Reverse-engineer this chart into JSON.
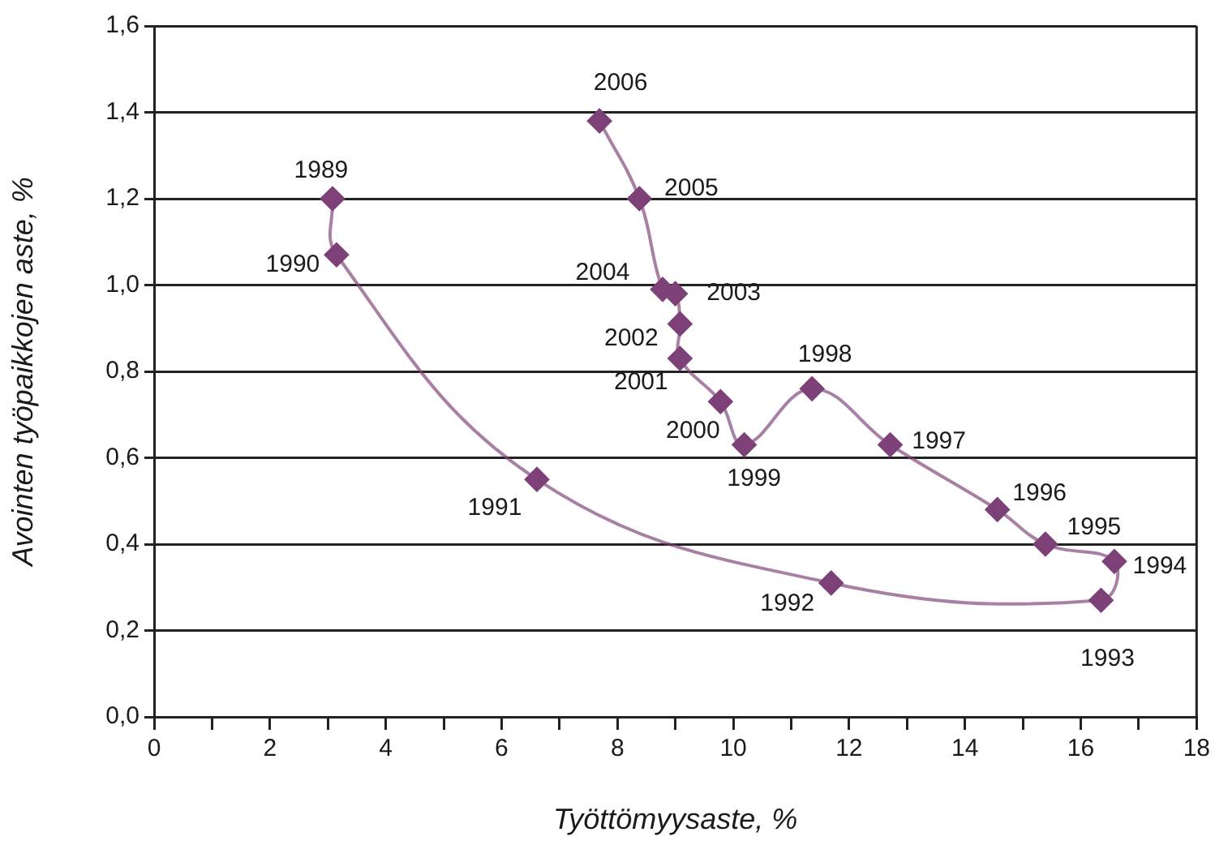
{
  "chart_data": {
    "type": "line",
    "xlabel": "Työttömyysaste, %",
    "ylabel": "Avointen työpaikkojen aste, %",
    "x": [
      3.08,
      3.15,
      6.61,
      11.69,
      16.35,
      16.58,
      15.39,
      14.56,
      12.71,
      11.36,
      10.19,
      9.78,
      9.08,
      9.08,
      9.0,
      8.78,
      8.38,
      7.69
    ],
    "series": [
      {
        "color": "#7d4177",
        "values": [
          1.2,
          1.07,
          0.55,
          0.31,
          0.27,
          0.36,
          0.4,
          0.48,
          0.63,
          0.76,
          0.63,
          0.73,
          0.83,
          0.91,
          0.98,
          0.99,
          1.2,
          1.38
        ]
      }
    ],
    "marker": "diamond",
    "grid": "y",
    "legend": false,
    "xlim": [
      0,
      18
    ],
    "xticks": [
      0,
      {
        "value": 1,
        "label": null
      },
      2,
      {
        "value": 3,
        "label": null
      },
      4,
      {
        "value": 5,
        "label": null
      },
      6,
      {
        "value": 7,
        "label": null
      },
      8,
      {
        "value": 9,
        "label": null
      },
      10,
      {
        "value": 11,
        "label": null
      },
      12,
      {
        "value": 13,
        "label": null
      },
      14,
      {
        "value": 15,
        "label": null
      },
      16,
      {
        "value": 17,
        "label": null
      },
      18
    ],
    "ylim": [
      0,
      1.6
    ],
    "yticks": [
      {
        "value": 0,
        "label": "0,0"
      },
      {
        "value": 0.2,
        "label": "0,2"
      },
      {
        "value": 0.4,
        "label": "0,4"
      },
      {
        "value": 0.6,
        "label": "0,6"
      },
      {
        "value": 0.8,
        "label": "0,8"
      },
      {
        "value": 1.0,
        "label": "1,0"
      },
      {
        "value": 1.2,
        "label": "1,2"
      },
      {
        "value": 1.4,
        "label": "1,4"
      },
      {
        "value": 1.6,
        "label": "1,6"
      }
    ],
    "annotations": [
      {
        "text": "1989",
        "x": 3.08,
        "y": 1.2
      },
      {
        "text": "1990",
        "x": 3.15,
        "y": 1.07
      },
      {
        "text": "1991",
        "x": 6.61,
        "y": 0.55
      },
      {
        "text": "1992",
        "x": 11.69,
        "y": 0.31
      },
      {
        "text": "1993",
        "x": 16.35,
        "y": 0.27
      },
      {
        "text": "1994",
        "x": 16.58,
        "y": 0.36
      },
      {
        "text": "1995",
        "x": 15.39,
        "y": 0.4
      },
      {
        "text": "1996",
        "x": 14.56,
        "y": 0.48
      },
      {
        "text": "1997",
        "x": 12.71,
        "y": 0.63
      },
      {
        "text": "1998",
        "x": 11.36,
        "y": 0.76
      },
      {
        "text": "1999",
        "x": 10.19,
        "y": 0.63
      },
      {
        "text": "2000",
        "x": 9.78,
        "y": 0.73
      },
      {
        "text": "2001",
        "x": 9.08,
        "y": 0.83
      },
      {
        "text": "2002",
        "x": 9.08,
        "y": 0.91
      },
      {
        "text": "2003",
        "x": 9.0,
        "y": 0.98
      },
      {
        "text": "2004",
        "x": 8.78,
        "y": 0.99
      },
      {
        "text": "2005",
        "x": 8.38,
        "y": 1.2
      },
      {
        "text": "2006",
        "x": 7.69,
        "y": 1.38
      }
    ]
  }
}
